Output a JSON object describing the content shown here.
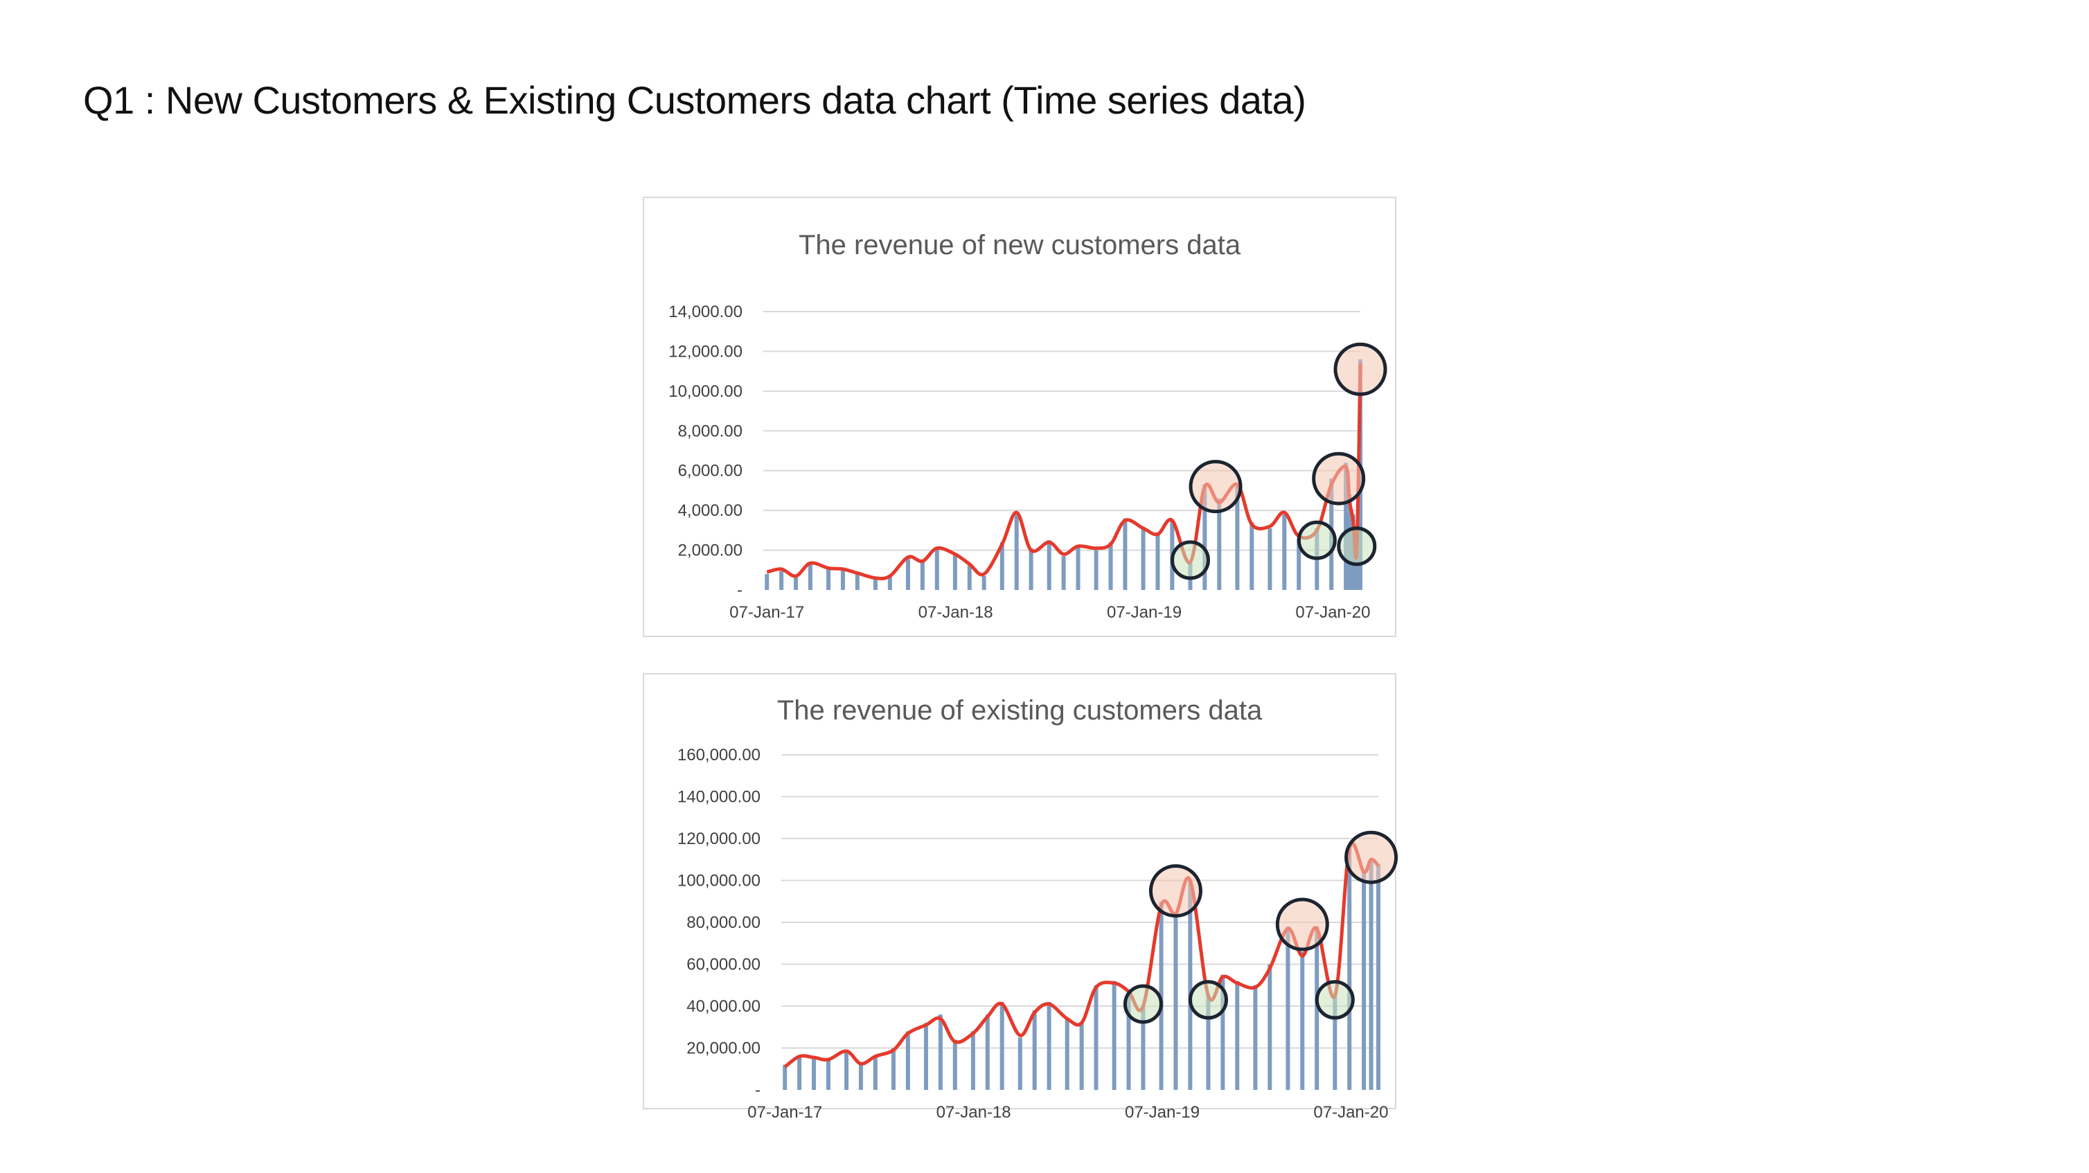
{
  "page": {
    "title": "Q1 : New Customers & Existing Customers data chart (Time series data)"
  },
  "colors": {
    "bars": "#7f9cc0",
    "trend": "#e53a2c",
    "peak_fill": "#f4c6b2",
    "trough_fill": "#c8e2bd",
    "marker_stroke": "#1c2430",
    "grid": "#d9d9d9"
  },
  "chart_data": [
    {
      "type": "bar",
      "id": "new",
      "title": "The revenue of new customers data",
      "x_range": [
        "2016-12-31",
        "2020-02-29"
      ],
      "ylim": [
        0,
        14000
      ],
      "y_ticks": [
        "-",
        "2,000.00",
        "4,000.00",
        "6,000.00",
        "8,000.00",
        "10,000.00",
        "12,000.00",
        "14,000.00"
      ],
      "x_ticks": [
        {
          "date": "2017-01-07",
          "label": "07-Jan-17"
        },
        {
          "date": "2018-01-07",
          "label": "07-Jan-18"
        },
        {
          "date": "2019-01-07",
          "label": "07-Jan-19"
        },
        {
          "date": "2020-01-07",
          "label": "07-Jan-20"
        }
      ],
      "grid": true,
      "series": [
        {
          "kind": "bars",
          "points": [
            [
              "2017-01-07",
              800
            ],
            [
              "2017-02-04",
              950
            ],
            [
              "2017-03-04",
              650
            ],
            [
              "2017-04-01",
              1400
            ],
            [
              "2017-05-06",
              1050
            ],
            [
              "2017-06-03",
              1100
            ],
            [
              "2017-07-01",
              850
            ],
            [
              "2017-08-05",
              600
            ],
            [
              "2017-09-02",
              700
            ],
            [
              "2017-10-07",
              1700
            ],
            [
              "2017-11-04",
              1400
            ],
            [
              "2017-12-02",
              2100
            ],
            [
              "2018-01-06",
              1800
            ],
            [
              "2018-02-03",
              1300
            ],
            [
              "2018-03-03",
              700
            ],
            [
              "2018-04-07",
              2400
            ],
            [
              "2018-05-05",
              3800
            ],
            [
              "2018-06-02",
              2100
            ],
            [
              "2018-07-07",
              2500
            ],
            [
              "2018-08-04",
              1700
            ],
            [
              "2018-09-01",
              2200
            ],
            [
              "2018-10-06",
              2000
            ],
            [
              "2018-11-03",
              2400
            ],
            [
              "2018-12-01",
              3600
            ],
            [
              "2019-01-05",
              3100
            ],
            [
              "2019-02-02",
              2900
            ],
            [
              "2019-03-02",
              3500
            ],
            [
              "2019-04-06",
              1400
            ],
            [
              "2019-05-04",
              5300
            ],
            [
              "2019-06-01",
              4600
            ],
            [
              "2019-07-06",
              5200
            ],
            [
              "2019-08-03",
              3400
            ],
            [
              "2019-09-07",
              3100
            ],
            [
              "2019-10-05",
              3800
            ],
            [
              "2019-11-02",
              2600
            ],
            [
              "2019-12-07",
              3100
            ],
            [
              "2020-01-04",
              5600
            ],
            [
              "2020-02-01",
              6400
            ],
            [
              "2020-02-08",
              4800
            ],
            [
              "2020-02-15",
              3800
            ],
            [
              "2020-02-22",
              1700
            ],
            [
              "2020-02-29",
              11600
            ]
          ]
        },
        {
          "kind": "line",
          "points": [
            [
              "2017-01-07",
              900
            ],
            [
              "2017-02-04",
              1050
            ],
            [
              "2017-03-04",
              700
            ],
            [
              "2017-04-01",
              1350
            ],
            [
              "2017-05-06",
              1100
            ],
            [
              "2017-06-03",
              1050
            ],
            [
              "2017-07-01",
              850
            ],
            [
              "2017-08-05",
              600
            ],
            [
              "2017-09-02",
              700
            ],
            [
              "2017-10-07",
              1650
            ],
            [
              "2017-11-04",
              1450
            ],
            [
              "2017-12-02",
              2100
            ],
            [
              "2018-01-06",
              1800
            ],
            [
              "2018-02-03",
              1300
            ],
            [
              "2018-03-03",
              800
            ],
            [
              "2018-04-07",
              2300
            ],
            [
              "2018-05-05",
              3900
            ],
            [
              "2018-06-02",
              2000
            ],
            [
              "2018-07-07",
              2400
            ],
            [
              "2018-08-04",
              1800
            ],
            [
              "2018-09-01",
              2200
            ],
            [
              "2018-10-06",
              2100
            ],
            [
              "2018-11-03",
              2300
            ],
            [
              "2018-12-01",
              3500
            ],
            [
              "2019-01-05",
              3100
            ],
            [
              "2019-02-02",
              2800
            ],
            [
              "2019-03-02",
              3500
            ],
            [
              "2019-04-06",
              1400
            ],
            [
              "2019-05-04",
              5200
            ],
            [
              "2019-06-01",
              4400
            ],
            [
              "2019-07-06",
              5300
            ],
            [
              "2019-08-03",
              3300
            ],
            [
              "2019-09-07",
              3200
            ],
            [
              "2019-10-05",
              3900
            ],
            [
              "2019-11-02",
              2700
            ],
            [
              "2019-12-07",
              3000
            ],
            [
              "2020-01-04",
              5300
            ],
            [
              "2020-02-01",
              6200
            ],
            [
              "2020-02-08",
              4500
            ],
            [
              "2020-02-15",
              3500
            ],
            [
              "2020-02-22",
              2000
            ],
            [
              "2020-02-29",
              11400
            ]
          ]
        }
      ],
      "markers": [
        {
          "kind": "trough",
          "date": "2019-04-06",
          "value": 1500
        },
        {
          "kind": "peak",
          "date": "2019-05-25",
          "value": 5200
        },
        {
          "kind": "trough",
          "date": "2019-12-07",
          "value": 2500
        },
        {
          "kind": "peak",
          "date": "2020-01-18",
          "value": 5600
        },
        {
          "kind": "trough",
          "date": "2020-02-22",
          "value": 2200
        },
        {
          "kind": "peak",
          "date": "2020-02-29",
          "value": 11100
        }
      ]
    },
    {
      "type": "bar",
      "id": "existing",
      "title": "The revenue of existing customers data",
      "x_range": [
        "2016-12-31",
        "2020-02-29"
      ],
      "ylim": [
        0,
        160000
      ],
      "y_ticks": [
        "-",
        "20,000.00",
        "40,000.00",
        "60,000.00",
        "80,000.00",
        "100,000.00",
        "120,000.00",
        "140,000.00",
        "160,000.00"
      ],
      "x_ticks": [
        {
          "date": "2017-01-07",
          "label": "07-Jan-17"
        },
        {
          "date": "2018-01-07",
          "label": "07-Jan-18"
        },
        {
          "date": "2019-01-07",
          "label": "07-Jan-19"
        },
        {
          "date": "2020-01-07",
          "label": "07-Jan-20"
        }
      ],
      "grid": true,
      "series": [
        {
          "kind": "bars",
          "points": [
            [
              "2017-01-07",
              12000
            ],
            [
              "2017-02-04",
              16000
            ],
            [
              "2017-03-04",
              15000
            ],
            [
              "2017-04-01",
              14000
            ],
            [
              "2017-05-06",
              18000
            ],
            [
              "2017-06-03",
              12000
            ],
            [
              "2017-07-01",
              16000
            ],
            [
              "2017-08-05",
              20000
            ],
            [
              "2017-09-02",
              28000
            ],
            [
              "2017-10-07",
              32000
            ],
            [
              "2017-11-04",
              36000
            ],
            [
              "2017-12-02",
              24000
            ],
            [
              "2018-01-06",
              28000
            ],
            [
              "2018-02-03",
              36000
            ],
            [
              "2018-03-03",
              42000
            ],
            [
              "2018-04-07",
              25000
            ],
            [
              "2018-05-05",
              38000
            ],
            [
              "2018-06-02",
              42000
            ],
            [
              "2018-07-07",
              34000
            ],
            [
              "2018-08-04",
              32000
            ],
            [
              "2018-09-01",
              50000
            ],
            [
              "2018-10-06",
              52000
            ],
            [
              "2018-11-03",
              48000
            ],
            [
              "2018-12-01",
              40000
            ],
            [
              "2019-01-05",
              90000
            ],
            [
              "2019-02-02",
              85000
            ],
            [
              "2019-03-02",
              100000
            ],
            [
              "2019-04-06",
              45000
            ],
            [
              "2019-05-04",
              55000
            ],
            [
              "2019-06-01",
              52000
            ],
            [
              "2019-07-06",
              50000
            ],
            [
              "2019-08-03",
              60000
            ],
            [
              "2019-09-07",
              78000
            ],
            [
              "2019-10-05",
              66000
            ],
            [
              "2019-11-02",
              78000
            ],
            [
              "2019-12-07",
              45000
            ],
            [
              "2020-01-04",
              115000
            ],
            [
              "2020-02-01",
              105000
            ],
            [
              "2020-02-15",
              110000
            ],
            [
              "2020-02-29",
              108000
            ]
          ]
        },
        {
          "kind": "line",
          "points": [
            [
              "2017-01-07",
              11000
            ],
            [
              "2017-02-04",
              16000
            ],
            [
              "2017-03-04",
              15500
            ],
            [
              "2017-04-01",
              14500
            ],
            [
              "2017-05-06",
              18500
            ],
            [
              "2017-06-03",
              12500
            ],
            [
              "2017-07-01",
              16000
            ],
            [
              "2017-08-05",
              19000
            ],
            [
              "2017-09-02",
              27000
            ],
            [
              "2017-10-07",
              31000
            ],
            [
              "2017-11-04",
              34000
            ],
            [
              "2017-12-02",
              23000
            ],
            [
              "2018-01-06",
              27000
            ],
            [
              "2018-02-03",
              35000
            ],
            [
              "2018-03-03",
              41000
            ],
            [
              "2018-04-07",
              26000
            ],
            [
              "2018-05-05",
              37000
            ],
            [
              "2018-06-02",
              41000
            ],
            [
              "2018-07-07",
              34000
            ],
            [
              "2018-08-04",
              32000
            ],
            [
              "2018-09-01",
              49000
            ],
            [
              "2018-10-06",
              51000
            ],
            [
              "2018-11-03",
              47000
            ],
            [
              "2018-12-01",
              40000
            ],
            [
              "2019-01-05",
              88000
            ],
            [
              "2019-02-02",
              84000
            ],
            [
              "2019-03-02",
              100000
            ],
            [
              "2019-04-06",
              45000
            ],
            [
              "2019-05-04",
              54000
            ],
            [
              "2019-06-01",
              51000
            ],
            [
              "2019-07-06",
              49000
            ],
            [
              "2019-08-03",
              58000
            ],
            [
              "2019-09-07",
              77000
            ],
            [
              "2019-10-05",
              64000
            ],
            [
              "2019-11-02",
              77000
            ],
            [
              "2019-12-07",
              45000
            ],
            [
              "2020-01-04",
              115000
            ],
            [
              "2020-02-01",
              104000
            ],
            [
              "2020-02-15",
              110000
            ],
            [
              "2020-02-29",
              107000
            ]
          ]
        }
      ],
      "markers": [
        {
          "kind": "trough",
          "date": "2018-12-01",
          "value": 41000
        },
        {
          "kind": "peak",
          "date": "2019-02-02",
          "value": 95000
        },
        {
          "kind": "trough",
          "date": "2019-04-06",
          "value": 43000
        },
        {
          "kind": "peak",
          "date": "2019-10-05",
          "value": 79000
        },
        {
          "kind": "trough",
          "date": "2019-12-07",
          "value": 43000
        },
        {
          "kind": "peak",
          "date": "2020-02-15",
          "value": 111000
        }
      ]
    }
  ]
}
